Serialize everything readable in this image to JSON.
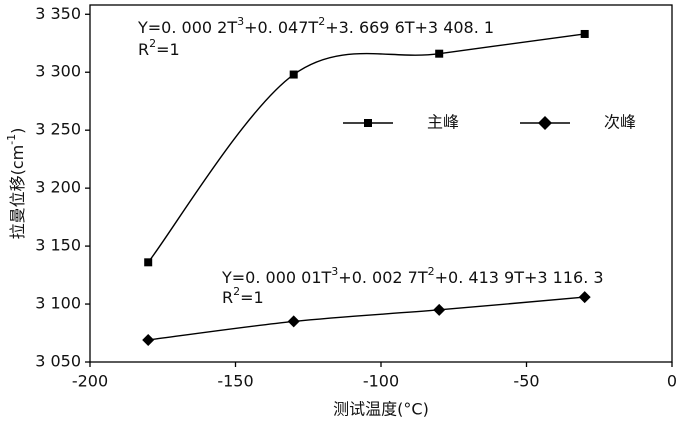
{
  "chart_data": {
    "type": "line",
    "x_label": "测试温度(°C)",
    "y_label": [
      "拉曼位移(cm",
      "-1",
      ")"
    ],
    "x": [
      -180,
      -130,
      -80,
      -30
    ],
    "series": [
      {
        "name": "主峰",
        "color": "#000000",
        "marker": "square",
        "values": [
          3136,
          3298,
          3316,
          3333
        ]
      },
      {
        "name": "次峰",
        "color": "#000000",
        "marker": "diamond",
        "values": [
          3069,
          3085,
          3095,
          3106
        ]
      }
    ],
    "annotations": [
      {
        "equation": [
          "Y=0. 000 2T",
          "3",
          "+0. 047T",
          "2",
          "+3. 669 6T+3 408. 1"
        ],
        "r2": [
          "R",
          "2",
          "=1"
        ]
      },
      {
        "equation": [
          "Y=0. 000 01T",
          "3",
          "+0. 002 7T",
          "2",
          "+0. 413 9T+3 116. 3"
        ],
        "r2": [
          "R",
          "2",
          "=1"
        ]
      }
    ],
    "xlim": [
      -200,
      0
    ],
    "xticks": [
      -200,
      -150,
      -100,
      -50,
      0
    ],
    "ylim": [
      3050,
      3358
    ],
    "yticks": [
      {
        "value": 3050,
        "label": "3 050"
      },
      {
        "value": 3100,
        "label": "3 100"
      },
      {
        "value": 3150,
        "label": "3 150"
      },
      {
        "value": 3200,
        "label": "3 200"
      },
      {
        "value": 3250,
        "label": "3 250"
      },
      {
        "value": 3300,
        "label": "3 300"
      },
      {
        "value": 3350,
        "label": "3 350"
      }
    ]
  }
}
